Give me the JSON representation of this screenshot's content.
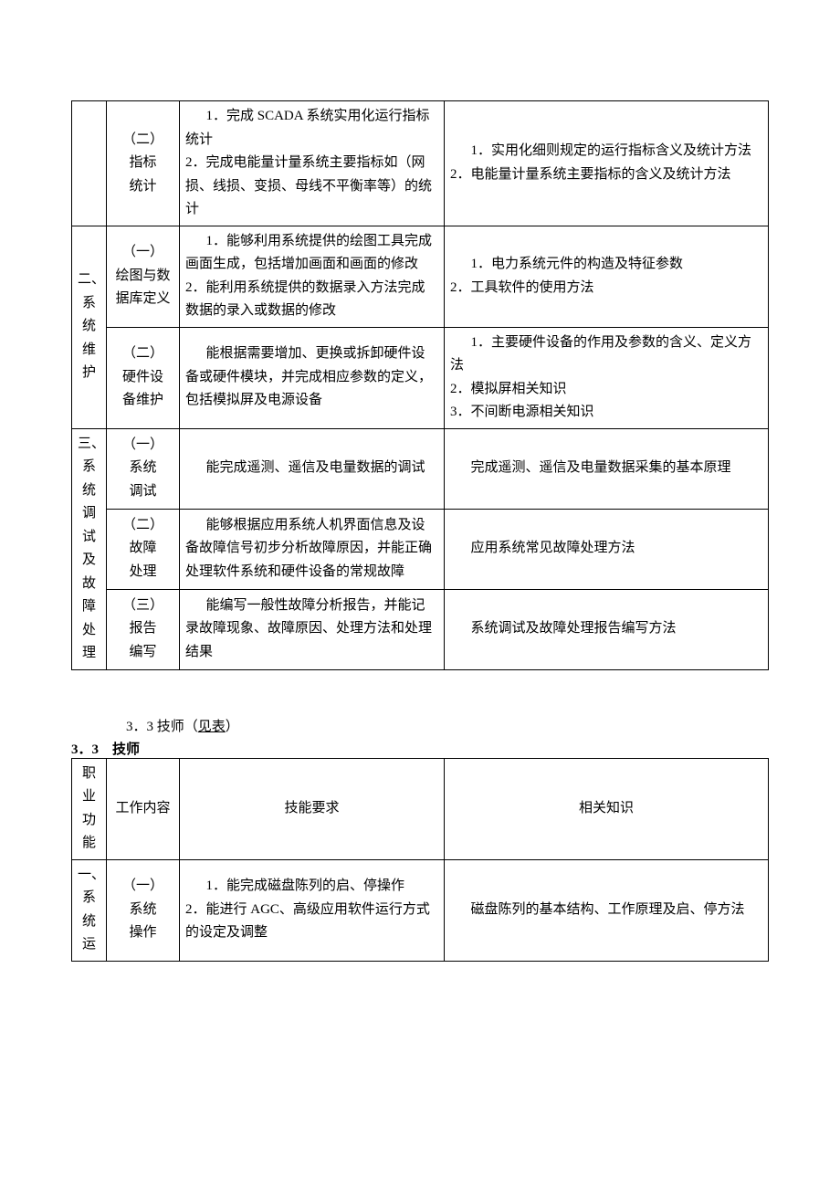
{
  "table1": {
    "colwidths": {
      "func": 38,
      "task": 80,
      "skill": 290
    },
    "rows": [
      {
        "func": null,
        "task": "（二）\n指标\n统计",
        "skill": "1．完成 SCADA 系统实用化运行指标统计\n2．完成电能量计量系统主要指标如（网损、线损、变损、母线不平衡率等）的统计",
        "know": "1．实用化细则规定的运行指标含义及统计方法\n2．电能量计量系统主要指标的含义及统计方法"
      },
      {
        "func": "二、\n系\n统\n维\n护",
        "funcRowspan": 2,
        "task": "（一）\n绘图与数\n据库定义",
        "skill": "1．能够利用系统提供的绘图工具完成画面生成，包括增加画面和画面的修改\n2．能利用系统提供的数据录入方法完成数据的录入或数据的修改",
        "know": "1．电力系统元件的构造及特征参数\n2．工具软件的使用方法"
      },
      {
        "task": "（二）\n硬件设\n备维护",
        "skill": "能根据需要增加、更换或拆卸硬件设备或硬件模块，并完成相应参数的定义，包括模拟屏及电源设备",
        "know": "1．主要硬件设备的作用及参数的含义、定义方法\n2．模拟屏相关知识\n3．不间断电源相关知识"
      },
      {
        "func": "三、\n系\n统\n调\n试\n及\n故\n障\n处\n理",
        "funcRowspan": 3,
        "task": "（一）\n系统\n调试",
        "skill": "能完成遥测、遥信及电量数据的调试",
        "know": "完成遥测、遥信及电量数据采集的基本原理"
      },
      {
        "task": "（二）\n故障\n处理",
        "skill": "能够根据应用系统人机界面信息及设备故障信号初步分析故障原因，并能正确处理软件系统和硬件设备的常规故障",
        "know": "应用系统常见故障处理方法"
      },
      {
        "task": "（三）\n报告\n编写",
        "skill": "能编写一般性故障分析报告，并能记录故障现象、故障原因、处理方法和处理结果",
        "know": "系统调试及故障处理报告编写方法"
      }
    ]
  },
  "sectionNote": "3．3 技师（",
  "sectionNoteLink": "见表",
  "sectionNoteTail": "）",
  "sectionTitle": "3．3　技师",
  "table2": {
    "header": {
      "func": "职业\n功能",
      "task": "工作内容",
      "skill": "技能要求",
      "know": "相关知识"
    },
    "rows": [
      {
        "func": "一、\n系\n统\n运",
        "task": "（一）\n系统\n操作",
        "skill": "1．能完成磁盘陈列的启、停操作\n2．能进行 AGC、高级应用软件运行方式的设定及调整",
        "know": "磁盘陈列的基本结构、工作原理及启、停方法"
      }
    ]
  },
  "styles": {
    "background": "#ffffff",
    "text_color": "#000000",
    "border_color": "#000000",
    "font_family": "SimSun",
    "base_fontsize": 15,
    "line_height": 1.7,
    "page_padding_top": 110,
    "page_padding_side": 78
  }
}
